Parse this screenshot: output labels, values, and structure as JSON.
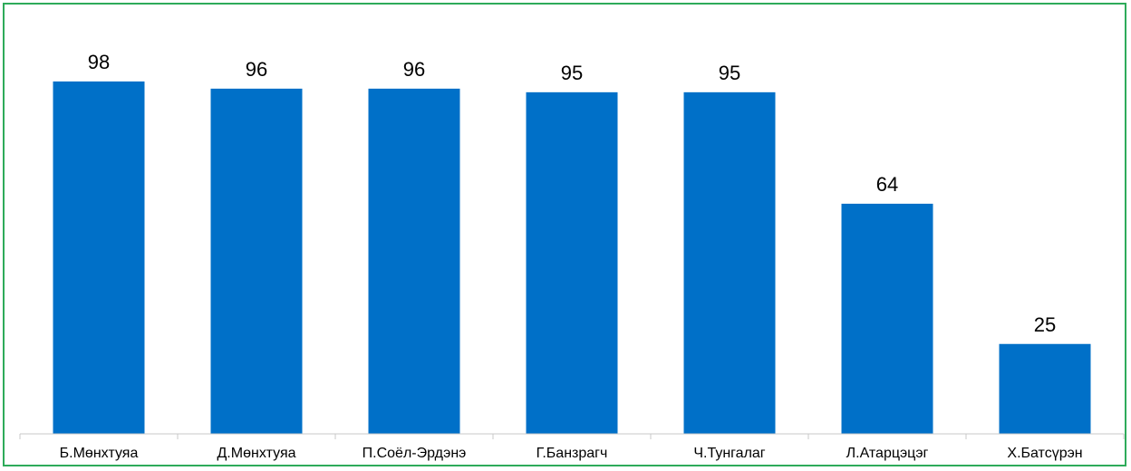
{
  "chart_data": {
    "type": "bar",
    "title": "",
    "xlabel": "",
    "ylabel": "",
    "categories": [
      "Б.Мөнхтуяа",
      "Д.Мөнхтуяа",
      "П.Соёл-Эрдэнэ",
      "Г.Банзрагч",
      "Ч.Тунгалаг",
      "Л.Атарцэцэг",
      "Х.Батсүрэн"
    ],
    "values": [
      98,
      96,
      96,
      95,
      95,
      64,
      25
    ],
    "ylim": [
      0,
      100
    ],
    "grid": false,
    "legend": "none",
    "data_labels": true
  },
  "colors": {
    "bar": "#0070c8",
    "border": "#2eab5a",
    "axis": "#c8c8c8"
  }
}
